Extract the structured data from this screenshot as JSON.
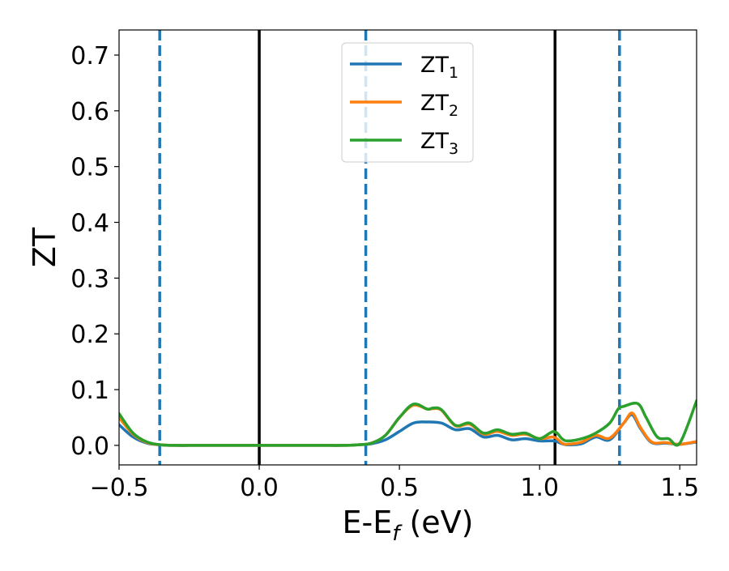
{
  "chart_data": {
    "type": "line",
    "xlabel": "E-E",
    "xlabel_sub": "f",
    "xlabel_unit": " (eV)",
    "ylabel": "ZT",
    "xlim": [
      -0.5,
      1.56
    ],
    "ylim": [
      -0.035,
      0.745
    ],
    "xticks": [
      -0.5,
      0.0,
      0.5,
      1.0,
      1.5
    ],
    "xtick_labels": [
      "−0.5",
      "0.0",
      "0.5",
      "1.0",
      "1.5"
    ],
    "yticks": [
      0.0,
      0.1,
      0.2,
      0.3,
      0.4,
      0.5,
      0.6,
      0.7
    ],
    "ytick_labels": [
      "0.0",
      "0.1",
      "0.2",
      "0.3",
      "0.4",
      "0.5",
      "0.6",
      "0.7"
    ],
    "grid": false,
    "legend_position": "top-center",
    "vlines": [
      {
        "x": -0.355,
        "style": "dashed",
        "color": "#1f77b4"
      },
      {
        "x": 0.0,
        "style": "solid",
        "color": "#000000"
      },
      {
        "x": 0.38,
        "style": "dashed",
        "color": "#1f77b4"
      },
      {
        "x": 1.055,
        "style": "solid",
        "color": "#000000"
      },
      {
        "x": 1.285,
        "style": "dashed",
        "color": "#1f77b4"
      }
    ],
    "series": [
      {
        "name": "ZT",
        "name_sub": "1",
        "color": "#1f77b4",
        "x": [
          -0.5,
          -0.45,
          -0.4,
          -0.35,
          -0.3,
          -0.2,
          0.0,
          0.2,
          0.3,
          0.35,
          0.4,
          0.45,
          0.5,
          0.55,
          0.6,
          0.65,
          0.7,
          0.75,
          0.8,
          0.85,
          0.9,
          0.95,
          1.0,
          1.05,
          1.08,
          1.1,
          1.15,
          1.2,
          1.25,
          1.3,
          1.33,
          1.36,
          1.4,
          1.45,
          1.5,
          1.56
        ],
        "y": [
          0.037,
          0.015,
          0.004,
          0.001,
          0.0,
          0.0,
          0.0,
          0.0,
          0.0,
          0.001,
          0.003,
          0.01,
          0.025,
          0.04,
          0.042,
          0.04,
          0.028,
          0.03,
          0.015,
          0.018,
          0.01,
          0.012,
          0.008,
          0.008,
          0.003,
          0.001,
          0.003,
          0.015,
          0.01,
          0.04,
          0.055,
          0.03,
          0.005,
          0.004,
          0.002,
          0.006
        ]
      },
      {
        "name": "ZT",
        "name_sub": "2",
        "color": "#ff7f0e",
        "x": [
          -0.5,
          -0.45,
          -0.4,
          -0.35,
          -0.3,
          -0.2,
          0.0,
          0.2,
          0.3,
          0.35,
          0.4,
          0.45,
          0.5,
          0.55,
          0.6,
          0.62,
          0.65,
          0.7,
          0.75,
          0.8,
          0.85,
          0.9,
          0.95,
          1.0,
          1.05,
          1.08,
          1.1,
          1.15,
          1.2,
          1.25,
          1.3,
          1.33,
          1.36,
          1.4,
          1.45,
          1.5,
          1.56
        ],
        "y": [
          0.05,
          0.02,
          0.005,
          0.001,
          0.0,
          0.0,
          0.0,
          0.0,
          0.0,
          0.001,
          0.004,
          0.018,
          0.05,
          0.072,
          0.065,
          0.066,
          0.063,
          0.035,
          0.038,
          0.02,
          0.025,
          0.018,
          0.02,
          0.012,
          0.015,
          0.004,
          0.002,
          0.006,
          0.018,
          0.013,
          0.04,
          0.058,
          0.032,
          0.006,
          0.005,
          0.002,
          0.007
        ]
      },
      {
        "name": "ZT",
        "name_sub": "3",
        "color": "#2ca02c",
        "x": [
          -0.5,
          -0.45,
          -0.4,
          -0.35,
          -0.3,
          -0.2,
          0.0,
          0.2,
          0.3,
          0.35,
          0.4,
          0.45,
          0.5,
          0.55,
          0.6,
          0.62,
          0.65,
          0.7,
          0.75,
          0.8,
          0.85,
          0.9,
          0.95,
          1.0,
          1.05,
          1.08,
          1.1,
          1.15,
          1.2,
          1.25,
          1.28,
          1.3,
          1.35,
          1.38,
          1.42,
          1.46,
          1.5,
          1.56
        ],
        "y": [
          0.057,
          0.022,
          0.006,
          0.001,
          0.0,
          0.0,
          0.0,
          0.0,
          0.0,
          0.001,
          0.004,
          0.018,
          0.05,
          0.074,
          0.065,
          0.067,
          0.064,
          0.036,
          0.04,
          0.022,
          0.028,
          0.02,
          0.022,
          0.012,
          0.025,
          0.012,
          0.008,
          0.012,
          0.022,
          0.04,
          0.065,
          0.07,
          0.075,
          0.05,
          0.015,
          0.012,
          0.004,
          0.08
        ]
      }
    ]
  }
}
